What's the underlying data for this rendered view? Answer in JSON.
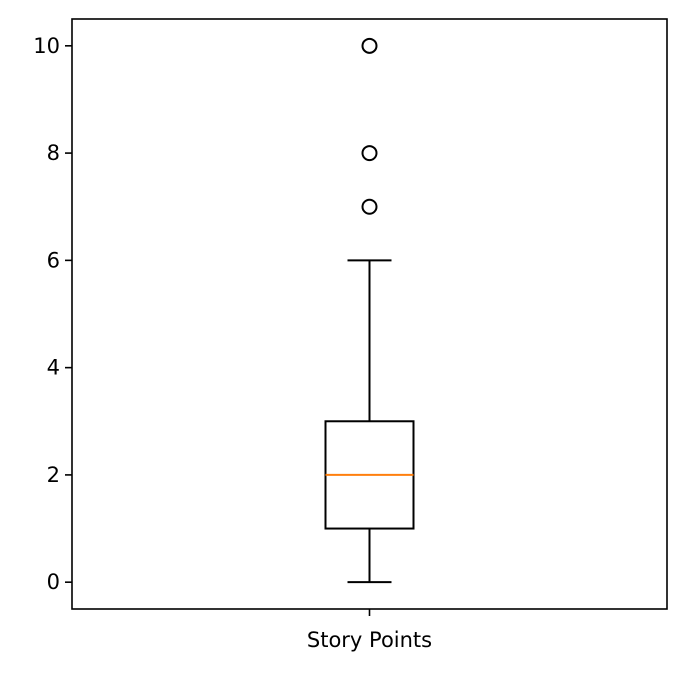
{
  "chart_data": {
    "type": "box",
    "categories": [
      "Story Points"
    ],
    "boxes": [
      {
        "category": "Story Points",
        "whisker_low": 0,
        "q1": 1,
        "median": 2,
        "q3": 3,
        "whisker_high": 6,
        "outliers": [
          7,
          8,
          10
        ]
      }
    ],
    "title": "",
    "xlabel": "",
    "ylabel": "",
    "ylim": [
      -0.5,
      10.5
    ],
    "yticks": [
      0,
      2,
      4,
      6,
      8,
      10
    ],
    "grid": false,
    "colors": {
      "box": "#000000",
      "median": "#ff7f0e",
      "outlier": "#000000"
    }
  }
}
